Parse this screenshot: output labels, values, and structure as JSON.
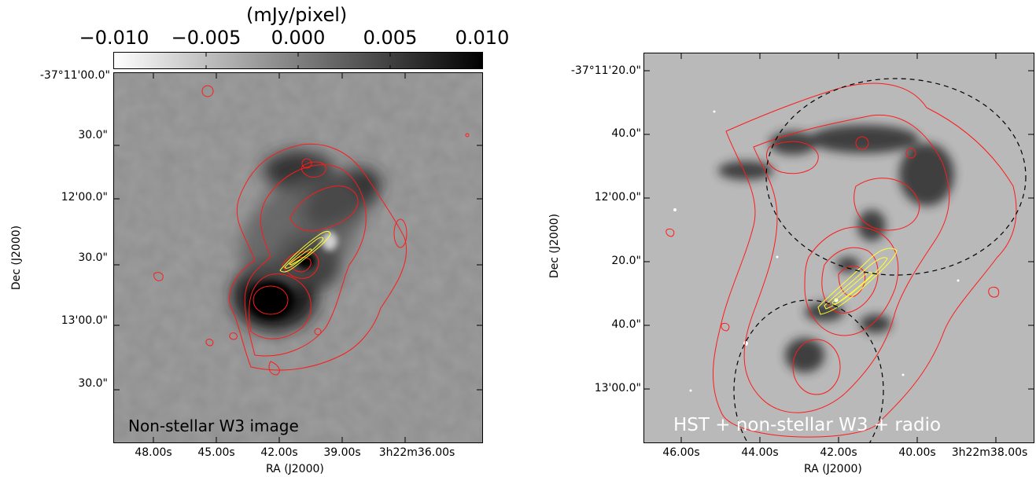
{
  "left_panel": {
    "colorbar": {
      "title": "(mJy/pixel)",
      "ticks": [
        "−0.010",
        "−0.005",
        "0.000",
        "0.005",
        "0.010"
      ]
    },
    "dec_labels": [
      "-37°11'00.0\"",
      "30.0\"",
      "12'00.0\"",
      "30.0\"",
      "13'00.0\"",
      "30.0\""
    ],
    "ra_labels": [
      "48.00s",
      "45.00s",
      "42.00s",
      "39.00s",
      "3h22m36.00s"
    ],
    "x_title": "RA (J2000)",
    "y_title": "Dec (J2000)",
    "caption": "Non-stellar W3 image"
  },
  "right_panel": {
    "dec_labels": [
      "-37°11'20.0\"",
      "40.0\"",
      "12'00.0\"",
      "20.0\"",
      "40.0\"",
      "13'00.0\""
    ],
    "ra_labels": [
      "46.00s",
      "44.00s",
      "42.00s",
      "40.00s",
      "3h22m38.00s"
    ],
    "x_title": "RA (J2000)",
    "y_title": "Dec (J2000)",
    "caption": "HST + non-stellar W3 + radio"
  },
  "colors": {
    "contour_ir": "#ff1a1a",
    "contour_radio": "#ffff33",
    "ellipse": "#000000"
  }
}
